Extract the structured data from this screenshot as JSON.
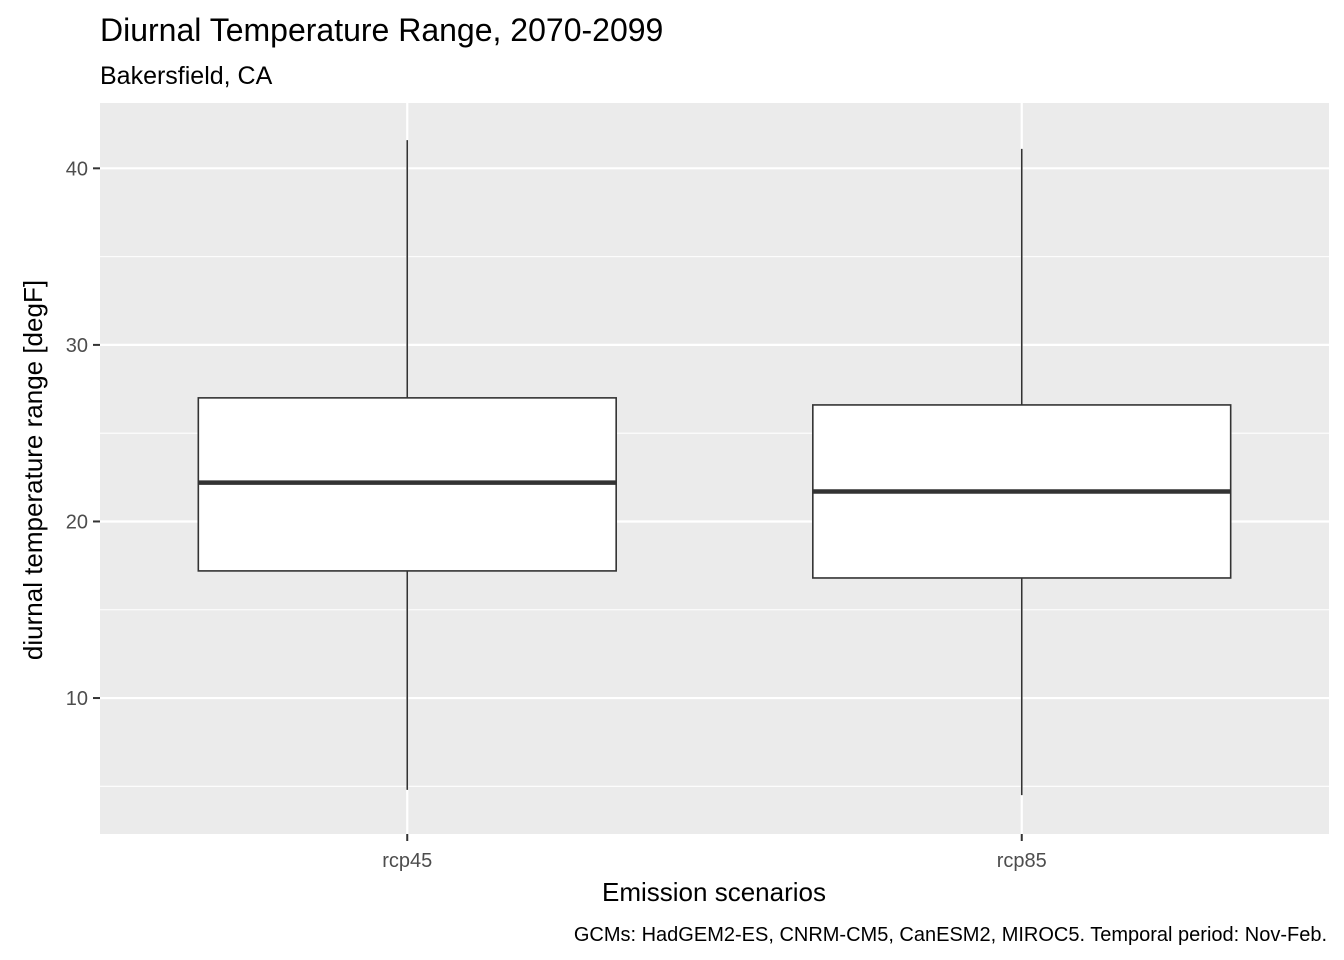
{
  "chart_data": {
    "type": "boxplot",
    "title": "Diurnal Temperature Range, 2070-2099",
    "subtitle": "Bakersfield, CA",
    "xlabel": "Emission scenarios",
    "ylabel": "diurnal temperature range [degF]",
    "caption": "GCMs: HadGEM2-ES, CNRM-CM5, CanESM2, MIROC5. Temporal period: Nov-Feb.",
    "categories": [
      "rcp45",
      "rcp85"
    ],
    "boxes": [
      {
        "category": "rcp45",
        "min": 4.8,
        "q1": 17.2,
        "median": 22.2,
        "q3": 27.0,
        "max": 41.6
      },
      {
        "category": "rcp85",
        "min": 4.5,
        "q1": 16.8,
        "median": 21.7,
        "q3": 26.6,
        "max": 41.1
      }
    ],
    "yticks": [
      10,
      20,
      30,
      40
    ],
    "ytick_labels": [
      "10",
      "20",
      "30",
      "40"
    ],
    "ylim": [
      2.3,
      43.7
    ],
    "grid": true,
    "colors": {
      "panel_background": "#ebebeb",
      "grid": "#ffffff",
      "box_fill": "#ffffff",
      "box_line": "#333333",
      "tick_label": "#4d4d4d"
    }
  }
}
